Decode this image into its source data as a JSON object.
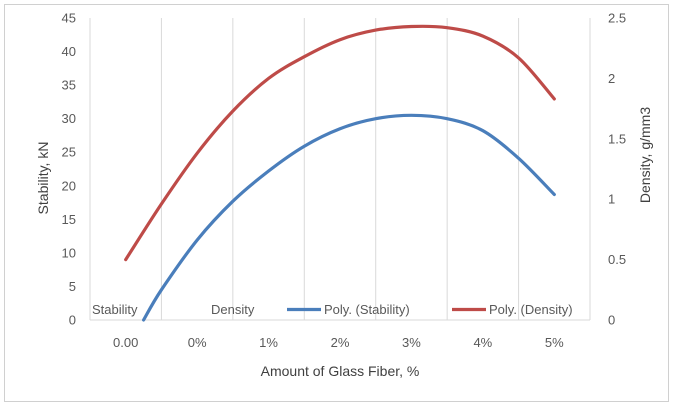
{
  "chart_data": {
    "type": "line",
    "title": "",
    "xlabel": "Amount of Glass Fiber, %",
    "ylabel": "Stability, kN",
    "y2label": "Density, g/mm3",
    "categories": [
      "0.00",
      "0%",
      "1%",
      "2%",
      "3%",
      "4%",
      "5%"
    ],
    "ylim": [
      0,
      45
    ],
    "yticks": [
      0,
      5,
      10,
      15,
      20,
      25,
      30,
      35,
      40,
      45
    ],
    "y2lim": [
      0,
      2.5
    ],
    "y2ticks": [
      "0",
      "0.5",
      "1",
      "1.5",
      "2",
      "2.5"
    ],
    "grid": "vertical",
    "legend_position": "bottom-inside",
    "legend": [
      "Stability",
      "Density",
      "Poly. (Stability)",
      "Poly. (Density)"
    ],
    "series": [
      {
        "name": "Poly. (Stability)",
        "axis": "left",
        "color": "#4a7ebb",
        "x": [
          0.25,
          0.5,
          1.0,
          1.5,
          2.0,
          2.5,
          3.0,
          3.5,
          4.0,
          4.5,
          5.0,
          5.5,
          6.0
        ],
        "y": [
          0.0,
          4.5,
          11.9,
          17.7,
          22.2,
          25.9,
          28.5,
          30.0,
          30.5,
          30.0,
          28.2,
          24.1,
          18.7
        ]
      },
      {
        "name": "Poly. (Density)",
        "axis": "right",
        "color": "#be4b48",
        "x": [
          0.0,
          0.5,
          1.0,
          1.5,
          2.0,
          2.5,
          3.0,
          3.5,
          4.0,
          4.5,
          5.0,
          5.5,
          6.0
        ],
        "y": [
          0.5,
          0.96,
          1.38,
          1.73,
          2.0,
          2.18,
          2.32,
          2.4,
          2.43,
          2.42,
          2.35,
          2.17,
          1.83
        ]
      }
    ]
  }
}
